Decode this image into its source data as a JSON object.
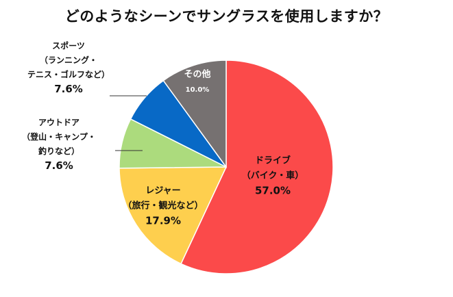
{
  "chart_data": {
    "type": "pie",
    "title": "どのようなシーンでサングラスを使用しますか？",
    "start_angle_deg": 0,
    "direction": "clockwise",
    "slices": [
      {
        "name_lines": [
          "ドライブ",
          "（バイク・車）"
        ],
        "value": 57.0,
        "value_label": "57.0%",
        "color": "#fb4a4a",
        "label_color": "#111111",
        "label_position": "inside"
      },
      {
        "name_lines": [
          "レジャー",
          "（旅行・観光など）"
        ],
        "value": 17.9,
        "value_label": "17.9%",
        "color": "#fecf4e",
        "label_color": "#111111",
        "label_position": "inside"
      },
      {
        "name_lines": [
          "アウトドア",
          "（登山・キャンプ・",
          "釣りなど）"
        ],
        "value": 7.6,
        "value_label": "7.6%",
        "color": "#acdb7d",
        "label_color": "#111111",
        "label_position": "outside"
      },
      {
        "name_lines": [
          "スポーツ",
          "（ランニング・",
          "テニス・ゴルフなど）"
        ],
        "value": 7.6,
        "value_label": "7.6%",
        "color": "#0869c6",
        "label_color": "#111111",
        "label_position": "outside"
      },
      {
        "name_lines": [
          "その他"
        ],
        "value": 10.0,
        "value_label": "10.0%",
        "color": "#767171",
        "label_color": "#ffffff",
        "label_position": "inside"
      }
    ]
  }
}
